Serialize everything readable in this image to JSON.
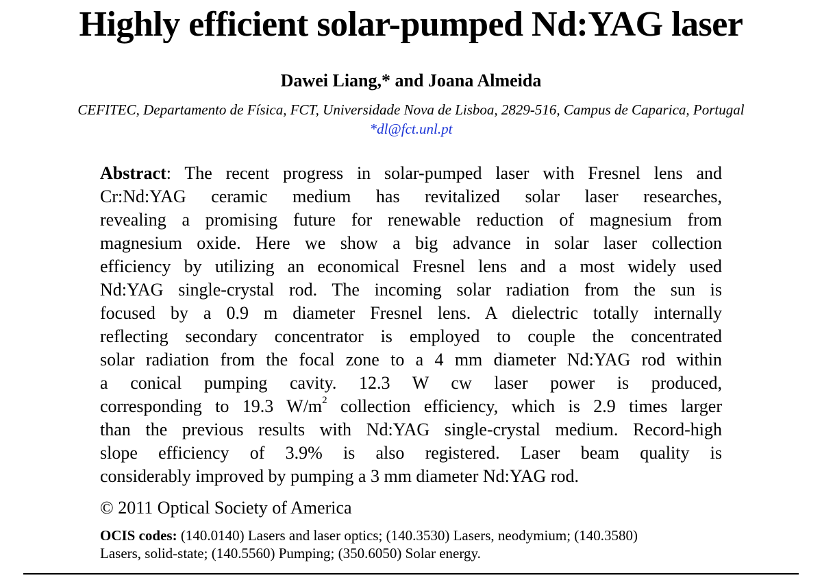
{
  "title": "Highly efficient solar-pumped Nd:YAG laser",
  "authors": "Dawei Liang,* and Joana Almeida",
  "affiliation": "CEFITEC, Departamento de Física, FCT, Universidade Nova de Lisboa, 2829-516, Campus de Caparica, Portugal",
  "email": "*dl@fct.unl.pt",
  "abstract": {
    "label": "Abstract",
    "lines": [
      ": The recent progress in solar-pumped laser with Fresnel lens and",
      "Cr:Nd:YAG ceramic medium has revitalized solar laser researches,",
      "revealing a promising future for renewable reduction of magnesium from",
      "magnesium oxide. Here we show a big advance in solar laser collection",
      "efficiency by utilizing an economical Fresnel lens and a most widely used",
      "Nd:YAG single-crystal rod. The incoming solar radiation from the sun is",
      "focused by a 0.9 m diameter Fresnel lens. A dielectric totally internally",
      "reflecting secondary concentrator is employed to couple the concentrated",
      "solar radiation from the focal zone to a 4 mm diameter Nd:YAG rod within",
      "a conical pumping cavity. 12.3 W cw laser power is produced,"
    ],
    "line11_before_sup": "corresponding to 19.3 W/m",
    "line11_sup": "2",
    "line11_after_sup": " collection efficiency, which is 2.9 times larger",
    "lines_end": [
      "than the previous results with Nd:YAG single-crystal medium. Record-high",
      "slope efficiency of 3.9% is also registered. Laser beam quality is",
      "considerably improved by pumping a 3 mm diameter Nd:YAG rod."
    ]
  },
  "copyright": "© 2011 Optical Society of America",
  "ocis": {
    "label": "OCIS codes:",
    "line1": " (140.0140) Lasers and laser optics; (140.3530) Lasers, neodymium; (140.3580)",
    "line2": "Lasers, solid-state; (140.5560) Pumping; (350.6050) Solar energy."
  },
  "colors": {
    "text": "#000000",
    "link": "#1a33d6",
    "background": "#ffffff"
  }
}
